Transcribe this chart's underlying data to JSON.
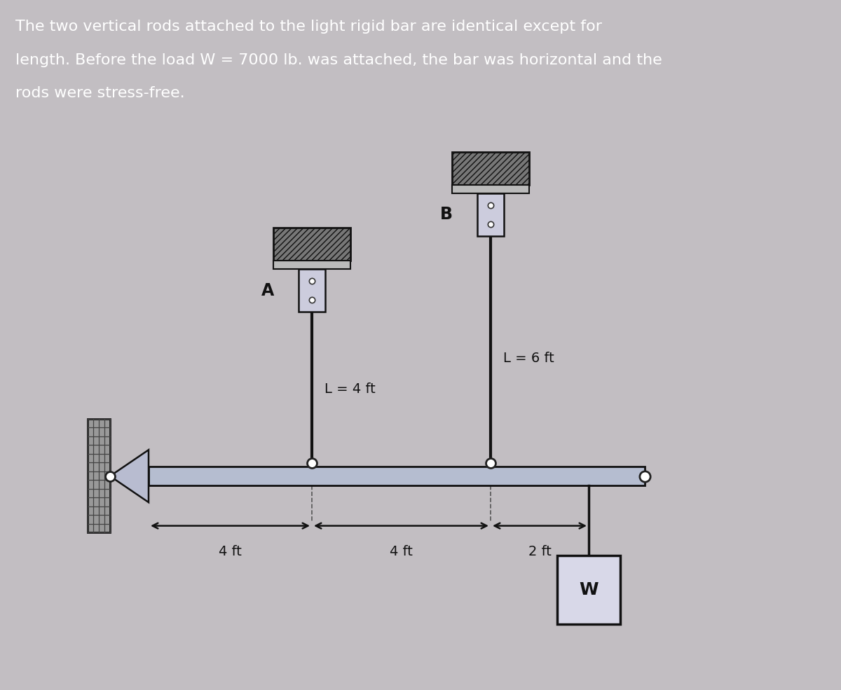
{
  "bg_color": "#c2bec2",
  "header_bg": "#7d1535",
  "header_text_line1": "The two vertical rods attached to the light rigid bar are identical except for",
  "header_text_line2": "length. Before the load W = 7000 lb. was attached, the bar was horizontal and the",
  "header_text_line3": "rods were stress-free.",
  "header_text_color": "#ffffff",
  "header_fontsize": 16,
  "diagram_bg": "#c8c4c8",
  "rod_A_label": "A",
  "rod_A_length_label": "L = 4 ft",
  "rod_B_label": "B",
  "rod_B_length_label": "L = 6 ft",
  "load_label": "W",
  "dim_4ft_1": "4 ft",
  "dim_4ft_2": "4 ft",
  "dim_2ft": "2 ft"
}
